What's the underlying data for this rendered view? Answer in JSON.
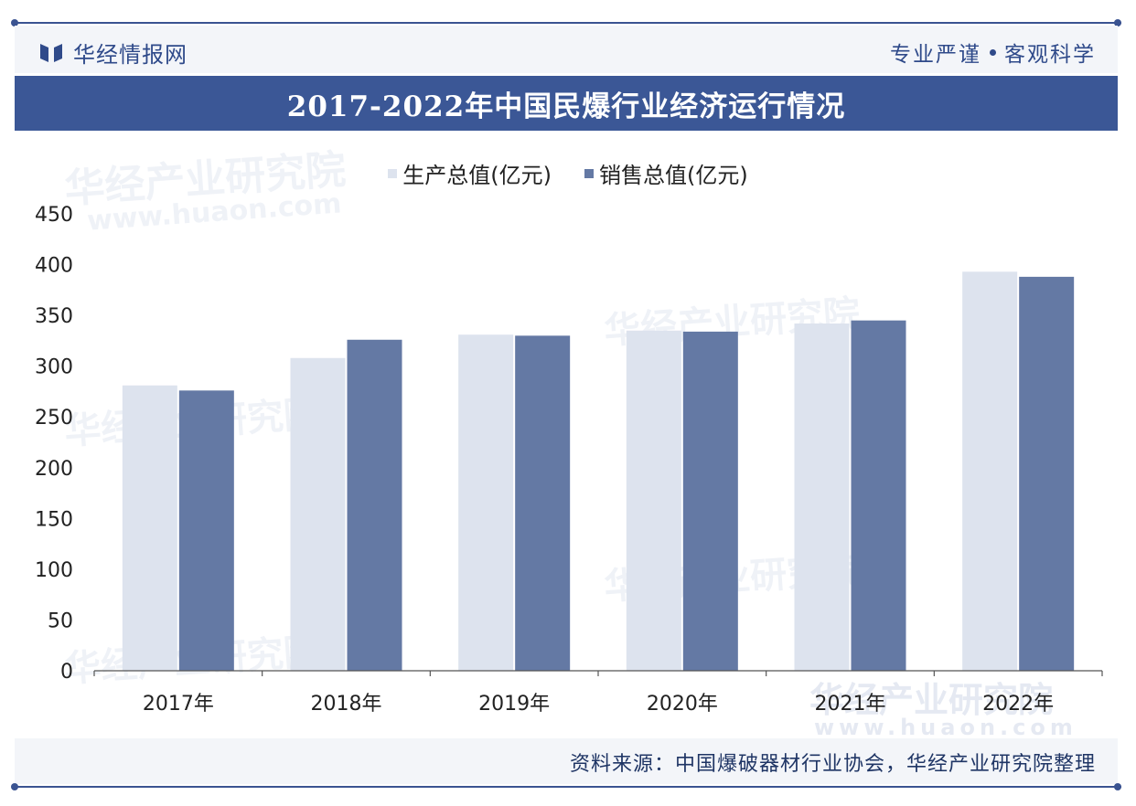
{
  "brand": {
    "name": "华经情报网",
    "logo_icon": "brand-logo-icon"
  },
  "slogan": {
    "left": "专业严谨",
    "right": "客观科学"
  },
  "title": "2017-2022年中国民爆行业经济运行情况",
  "source": "资料来源：中国爆破器材行业协会，华经产业研究院整理",
  "watermark": {
    "cn": "华经产业研究院",
    "url": "www.huaon.com"
  },
  "colors": {
    "accent": "#3b5796",
    "production": "#dde3ee",
    "sales": "#6479a4"
  },
  "chart_data": {
    "type": "bar",
    "title": "2017-2022年中国民爆行业经济运行情况",
    "categories": [
      "2017年",
      "2018年",
      "2019年",
      "2020年",
      "2021年",
      "2022年"
    ],
    "series": [
      {
        "name": "生产总值(亿元)",
        "values": [
          281,
          308,
          331,
          335,
          342,
          393
        ]
      },
      {
        "name": "销售总值(亿元)",
        "values": [
          276,
          326,
          330,
          334,
          345,
          388
        ]
      }
    ],
    "yticks": [
      0,
      50,
      100,
      150,
      200,
      250,
      300,
      350,
      400,
      450
    ],
    "ylim": [
      0,
      450
    ],
    "legend_position": "top-center",
    "grid": false
  }
}
